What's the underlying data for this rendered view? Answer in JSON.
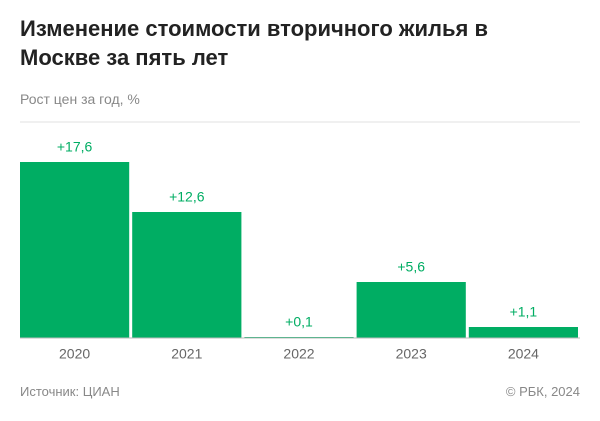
{
  "chart_data": {
    "type": "bar",
    "title": "Изменение стоимости вторичного жилья в Москве за пять лет",
    "subtitle": "Рост цен за год, %",
    "categories": [
      "2020",
      "2021",
      "2022",
      "2023",
      "2024"
    ],
    "values": [
      17.6,
      12.6,
      0.1,
      5.6,
      1.1
    ],
    "value_labels": [
      "+17,6",
      "+12,6",
      "+0,1",
      "+5,6",
      "+1,1"
    ],
    "color": "#00ad63",
    "ylim": [
      0,
      20
    ],
    "source": "Источник: ЦИАН",
    "copyright": "© РБК, 2024"
  }
}
